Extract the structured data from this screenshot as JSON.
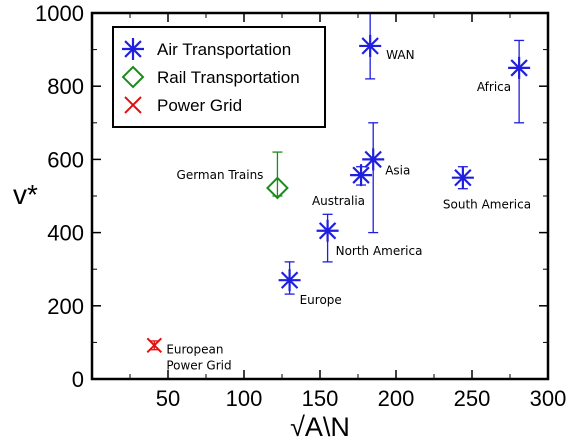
{
  "chart_data": {
    "type": "scatter",
    "xlabel": "√A\\N",
    "ylabel": "v*",
    "xlim": [
      0,
      300
    ],
    "ylim": [
      0,
      1000
    ],
    "x_ticks": [
      50,
      100,
      150,
      200,
      250,
      300
    ],
    "y_ticks": [
      0,
      200,
      400,
      600,
      800,
      1000
    ],
    "grid": false,
    "legend_position": "top-left",
    "series": [
      {
        "name": "Air Transportation",
        "marker": "asterisk",
        "color": "#1f1fe0",
        "points": [
          {
            "label": "WAN",
            "x": 183,
            "y": 910,
            "err_low": 820,
            "err_high": 1000
          },
          {
            "label": "Africa",
            "x": 281,
            "y": 850,
            "err_low": 700,
            "err_high": 925
          },
          {
            "label": "Asia",
            "x": 185,
            "y": 600,
            "err_low": 400,
            "err_high": 700
          },
          {
            "label": "Australia",
            "x": 177,
            "y": 557,
            "err_low": 530,
            "err_high": 580
          },
          {
            "label": "South America",
            "x": 244,
            "y": 550,
            "err_low": 520,
            "err_high": 580
          },
          {
            "label": "North America",
            "x": 155,
            "y": 405,
            "err_low": 320,
            "err_high": 450
          },
          {
            "label": "Europe",
            "x": 130,
            "y": 270,
            "err_low": 232,
            "err_high": 320
          }
        ]
      },
      {
        "name": "Rail Transportation",
        "marker": "diamond",
        "color": "#1a8c1a",
        "points": [
          {
            "label": "German Trains",
            "x": 122,
            "y": 522,
            "err_low": 500,
            "err_high": 620
          }
        ]
      },
      {
        "name": "Power Grid",
        "marker": "x",
        "color": "#e01010",
        "points": [
          {
            "label": "European\nPower Grid",
            "x": 41,
            "y": 92,
            "err_low": 80,
            "err_high": 104
          }
        ]
      }
    ]
  }
}
